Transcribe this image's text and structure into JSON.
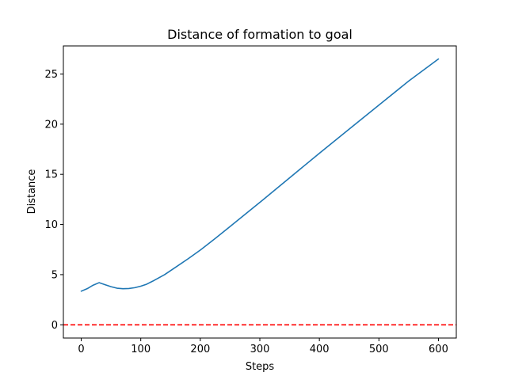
{
  "chart_data": {
    "type": "line",
    "title": "Distance of formation to goal",
    "xlabel": "Steps",
    "ylabel": "Distance",
    "xlim": [
      -30,
      630
    ],
    "ylim": [
      -1.32,
      27.8
    ],
    "xticks": [
      0,
      100,
      200,
      300,
      400,
      500,
      600
    ],
    "yticks": [
      0,
      5,
      10,
      15,
      20,
      25
    ],
    "grid": false,
    "series": [
      {
        "color": "#1f77b4",
        "x": [
          0,
          10,
          20,
          30,
          40,
          50,
          60,
          70,
          80,
          90,
          100,
          110,
          120,
          140,
          160,
          180,
          200,
          225,
          250,
          275,
          300,
          350,
          400,
          450,
          500,
          550,
          600
        ],
        "y": [
          3.35,
          3.6,
          3.95,
          4.2,
          4.0,
          3.8,
          3.65,
          3.6,
          3.62,
          3.7,
          3.85,
          4.05,
          4.35,
          5.0,
          5.8,
          6.6,
          7.45,
          8.6,
          9.8,
          11.0,
          12.2,
          14.65,
          17.1,
          19.5,
          21.9,
          24.3,
          26.5
        ]
      }
    ],
    "reference_line": {
      "y": 0,
      "color": "#ff0000",
      "style": "dashed"
    }
  }
}
